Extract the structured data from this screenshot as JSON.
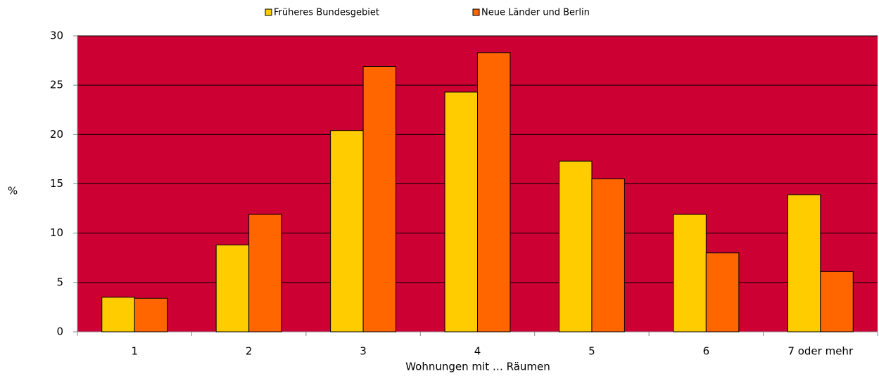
{
  "chart_data": {
    "type": "bar",
    "y_label": "%",
    "x_label": "Wohnungen mit … Räumen",
    "categories": [
      "1",
      "2",
      "3",
      "4",
      "5",
      "6",
      "7 oder mehr"
    ],
    "series": [
      {
        "name": "Früheres Bundesgebiet",
        "color": "#ffcc00",
        "values": [
          3.5,
          8.8,
          20.4,
          24.3,
          17.3,
          11.9,
          13.9
        ]
      },
      {
        "name": "Neue Länder und Berlin",
        "color": "#ff6600",
        "values": [
          3.4,
          11.9,
          26.9,
          28.3,
          15.5,
          8.0,
          6.1
        ]
      }
    ],
    "ylim": [
      0,
      30
    ],
    "yticks": [
      0,
      5,
      10,
      15,
      20,
      25,
      30
    ],
    "grid": true,
    "plot_background": "#cc0033",
    "legend": "top"
  }
}
